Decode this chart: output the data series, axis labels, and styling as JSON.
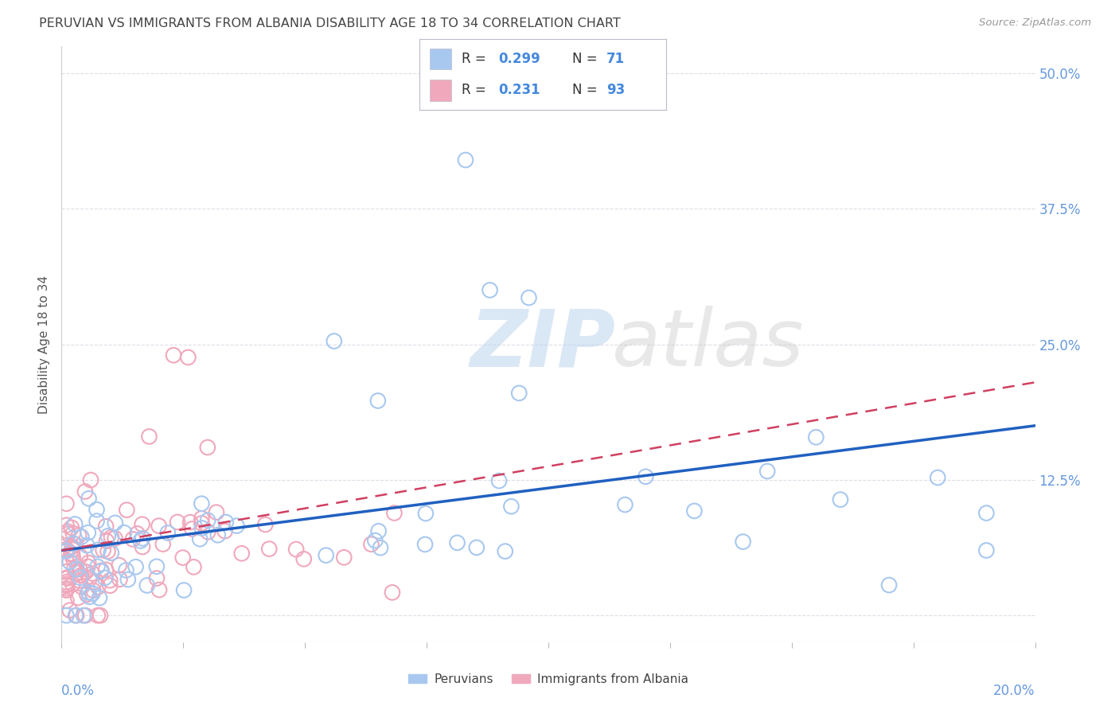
{
  "title": "PERUVIAN VS IMMIGRANTS FROM ALBANIA DISABILITY AGE 18 TO 34 CORRELATION CHART",
  "source": "Source: ZipAtlas.com",
  "ylabel": "Disability Age 18 to 34",
  "xlim": [
    0.0,
    0.2
  ],
  "ylim": [
    -0.025,
    0.525
  ],
  "blue_color": "#A8C8F0",
  "pink_color": "#F0A8BC",
  "line_blue": "#2060C0",
  "line_pink": "#D04060",
  "background_color": "#FFFFFF",
  "grid_color": "#DDDDE8",
  "legend_border": "#BBBBCC",
  "blue_text": "#4488DD",
  "pink_text": "#DD4466",
  "axis_label_color": "#6699DD",
  "title_color": "#444444",
  "source_color": "#999999"
}
